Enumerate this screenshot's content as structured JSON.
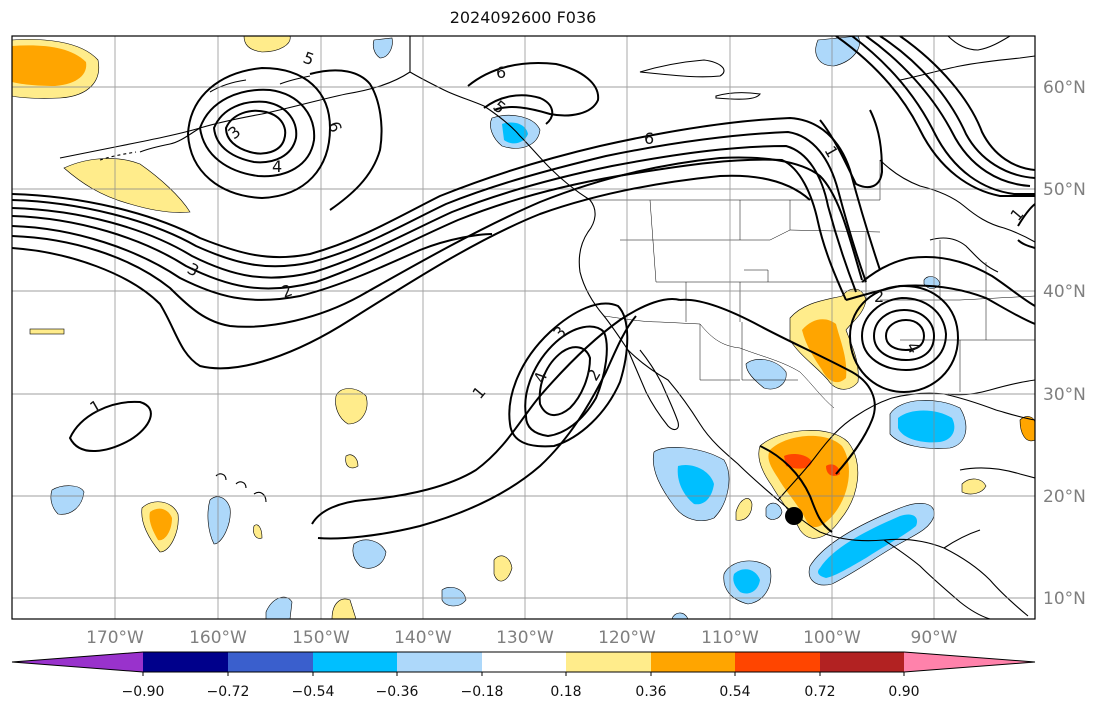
{
  "title": "2024092600 F036",
  "lon_labels": [
    "170°W",
    "160°W",
    "150°W",
    "140°W",
    "130°W",
    "120°W",
    "110°W",
    "100°W",
    "90°W"
  ],
  "lat_labels": [
    "60°N",
    "50°N",
    "40°N",
    "30°N",
    "20°N",
    "10°N"
  ],
  "contour_labels": [
    "1",
    "1",
    "2",
    "2",
    "3",
    "3",
    "4",
    "4",
    "4",
    "5",
    "5",
    "6",
    "6",
    "6",
    "3",
    "2",
    "1",
    "1"
  ],
  "colorbar": {
    "colors": [
      "#9932cc",
      "#00008b",
      "#3a5fcd",
      "#00bfff",
      "#add8fa",
      "#ffffff",
      "#ffec8b",
      "#ffa500",
      "#ff4500",
      "#b22222",
      "#ff82ab"
    ],
    "tick_labels": [
      "−0.90",
      "−0.72",
      "−0.54",
      "−0.36",
      "−0.18",
      "0.18",
      "0.36",
      "0.54",
      "0.72",
      "0.90"
    ]
  },
  "marker": {
    "label": "",
    "color": "#000000"
  }
}
